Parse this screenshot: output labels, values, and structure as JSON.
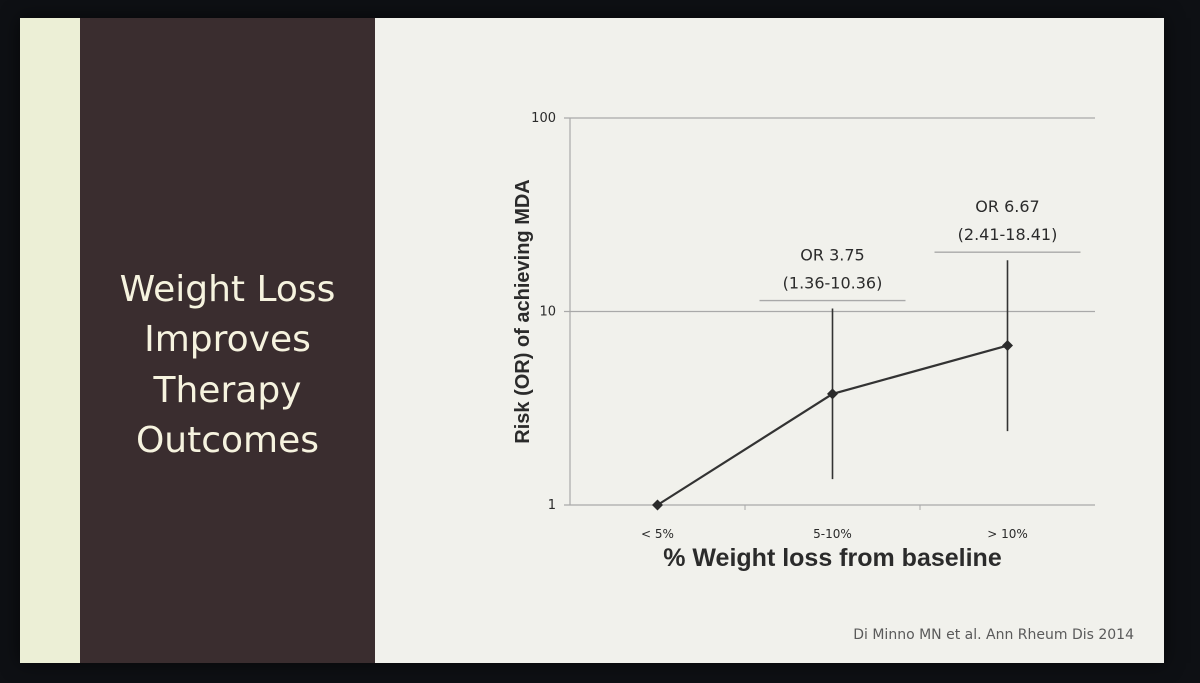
{
  "slide": {
    "title_lines": [
      "Weight Loss",
      "Improves",
      "Therapy",
      "Outcomes"
    ],
    "citation": "Di Minno MN et al. Ann Rheum Dis 2014"
  },
  "chart_data": {
    "type": "line",
    "categories": [
      "< 5%",
      "5-10%",
      "> 10%"
    ],
    "series": [
      {
        "values": [
          1,
          3.75,
          6.67
        ],
        "ci_low": [
          null,
          1.36,
          2.41
        ],
        "ci_high": [
          null,
          10.36,
          18.41
        ]
      }
    ],
    "annotations": [
      {
        "category": "5-10%",
        "or": "OR 3.75",
        "ci": "(1.36-10.36)"
      },
      {
        "category": "> 10%",
        "or": "OR 6.67",
        "ci": "(2.41-18.41)"
      }
    ],
    "xlabel": "% Weight loss from baseline",
    "ylabel": "Risk (OR) of achieving MDA",
    "y_scale": "log",
    "ylim": [
      1,
      100
    ],
    "yticks": [
      "1",
      "10",
      "100"
    ],
    "grid": "horizontal",
    "colors": {
      "line": "#333333",
      "grid": "#a9a9a9",
      "marker": "#2b2b2b"
    }
  }
}
